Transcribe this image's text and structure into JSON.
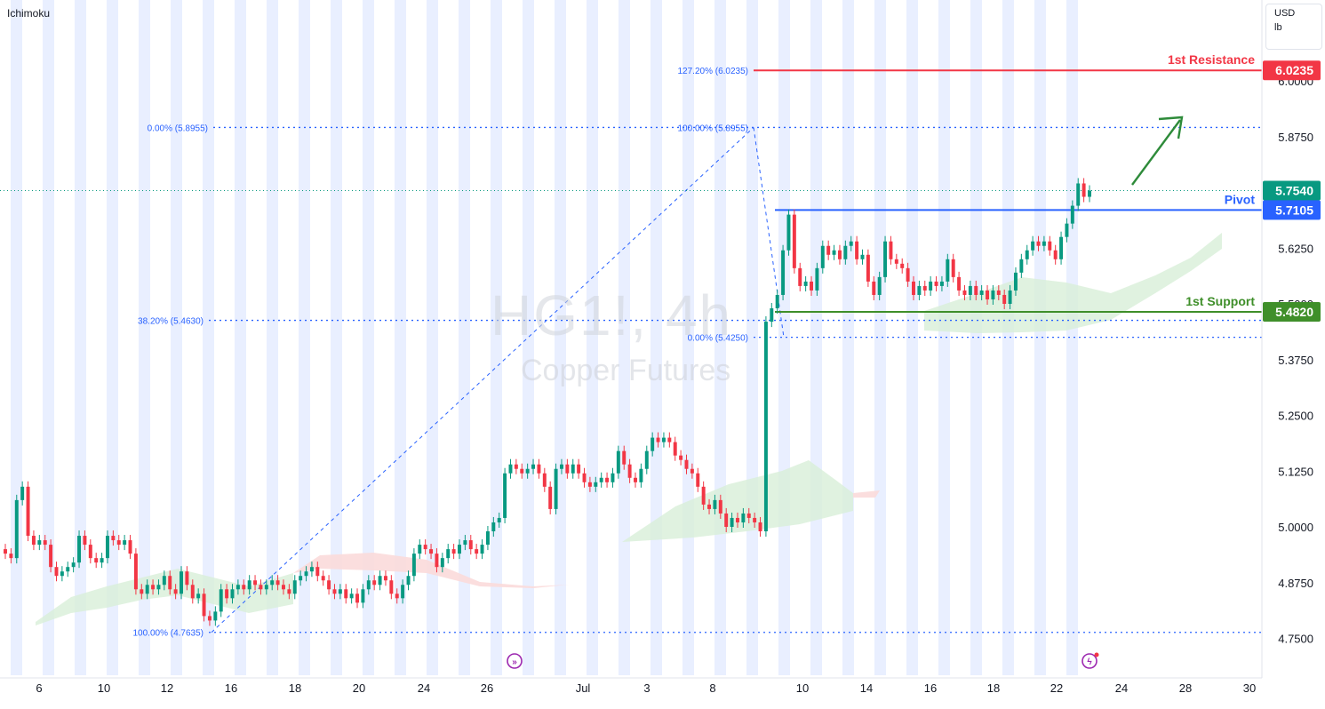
{
  "indicator_label": "Ichimoku",
  "currency_label": "USD",
  "unit_label": "lb",
  "watermark": {
    "symbol": "HG1!, 4h",
    "name": "Copper Futures"
  },
  "colors": {
    "up": "#089981",
    "down": "#f23645",
    "session_band": "#e9efff",
    "fib": "#2962ff",
    "resistance": "#f23645",
    "pivot": "#2962ff",
    "support": "#3f8f2a",
    "arrow": "#2e8b3a",
    "cloud_green": "#d8efd8",
    "cloud_red": "#fbdada"
  },
  "chart_data": {
    "type": "candlestick",
    "symbol": "HG1!",
    "interval": "4h",
    "ylim": [
      4.7,
      6.07
    ],
    "y_ticks": [
      "6.0000",
      "5.8750",
      "5.6250",
      "5.5000",
      "5.3750",
      "5.2500",
      "5.1250",
      "5.0000",
      "4.8750",
      "4.7500"
    ],
    "x_ticks": [
      "6",
      "10",
      "12",
      "16",
      "18",
      "20",
      "24",
      "26",
      "Jul",
      "3",
      "8",
      "10",
      "14",
      "16",
      "18",
      "22",
      "24",
      "28",
      "30"
    ],
    "price_tags": [
      {
        "value": "6.0235",
        "role": "resistance"
      },
      {
        "value": "5.7540",
        "role": "last"
      },
      {
        "value": "5.7105",
        "role": "pivot"
      },
      {
        "value": "5.4820",
        "role": "support"
      }
    ],
    "levels": [
      {
        "label": "1st Resistance",
        "value": 6.0235,
        "role": "resistance"
      },
      {
        "label": "Pivot",
        "value": 5.7105,
        "role": "pivot"
      },
      {
        "label": "1st Support",
        "value": 5.482,
        "role": "support"
      }
    ],
    "fib_retracement": [
      {
        "label": "0.00% (5.8955)",
        "value": 5.8955
      },
      {
        "label": "38.20% (5.4630)",
        "value": 5.463
      },
      {
        "label": "100.00% (4.7635)",
        "value": 4.7635
      }
    ],
    "fib_extension": [
      {
        "label": "127.20% (6.0235)",
        "value": 6.0235
      },
      {
        "label": "100.00% (5.8955)",
        "value": 5.8955
      },
      {
        "label": "0.00% (5.4250)",
        "value": 5.425
      }
    ],
    "last_price": 5.754,
    "candles": [
      {
        "o": 4.95,
        "c": 4.94
      },
      {
        "o": 4.94,
        "c": 4.93
      },
      {
        "o": 4.93,
        "c": 5.06
      },
      {
        "o": 5.06,
        "c": 5.09
      },
      {
        "o": 5.09,
        "c": 4.98
      },
      {
        "o": 4.98,
        "c": 4.96
      },
      {
        "o": 4.96,
        "c": 4.97
      },
      {
        "o": 4.97,
        "c": 4.96
      },
      {
        "o": 4.96,
        "c": 4.91
      },
      {
        "o": 4.91,
        "c": 4.89
      },
      {
        "o": 4.89,
        "c": 4.9
      },
      {
        "o": 4.9,
        "c": 4.91
      },
      {
        "o": 4.91,
        "c": 4.92
      },
      {
        "o": 4.92,
        "c": 4.98
      },
      {
        "o": 4.98,
        "c": 4.96
      },
      {
        "o": 4.96,
        "c": 4.93
      },
      {
        "o": 4.93,
        "c": 4.92
      },
      {
        "o": 4.92,
        "c": 4.93
      },
      {
        "o": 4.93,
        "c": 4.98
      },
      {
        "o": 4.98,
        "c": 4.97
      },
      {
        "o": 4.97,
        "c": 4.96
      },
      {
        "o": 4.96,
        "c": 4.97
      },
      {
        "o": 4.97,
        "c": 4.94
      },
      {
        "o": 4.94,
        "c": 4.86
      },
      {
        "o": 4.86,
        "c": 4.85
      },
      {
        "o": 4.85,
        "c": 4.87
      },
      {
        "o": 4.87,
        "c": 4.86
      },
      {
        "o": 4.86,
        "c": 4.87
      },
      {
        "o": 4.87,
        "c": 4.89
      },
      {
        "o": 4.89,
        "c": 4.86
      },
      {
        "o": 4.86,
        "c": 4.85
      },
      {
        "o": 4.85,
        "c": 4.9
      },
      {
        "o": 4.9,
        "c": 4.87
      },
      {
        "o": 4.87,
        "c": 4.84
      },
      {
        "o": 4.84,
        "c": 4.85
      },
      {
        "o": 4.85,
        "c": 4.8
      },
      {
        "o": 4.8,
        "c": 4.79
      },
      {
        "o": 4.79,
        "c": 4.81
      },
      {
        "o": 4.81,
        "c": 4.86
      },
      {
        "o": 4.86,
        "c": 4.84
      },
      {
        "o": 4.84,
        "c": 4.86
      },
      {
        "o": 4.86,
        "c": 4.87
      },
      {
        "o": 4.87,
        "c": 4.86
      },
      {
        "o": 4.86,
        "c": 4.88
      },
      {
        "o": 4.88,
        "c": 4.87
      },
      {
        "o": 4.87,
        "c": 4.86
      },
      {
        "o": 4.86,
        "c": 4.87
      },
      {
        "o": 4.87,
        "c": 4.88
      },
      {
        "o": 4.88,
        "c": 4.87
      },
      {
        "o": 4.87,
        "c": 4.86
      },
      {
        "o": 4.86,
        "c": 4.85
      },
      {
        "o": 4.85,
        "c": 4.88
      },
      {
        "o": 4.88,
        "c": 4.89
      },
      {
        "o": 4.89,
        "c": 4.9
      },
      {
        "o": 4.9,
        "c": 4.91
      },
      {
        "o": 4.91,
        "c": 4.89
      },
      {
        "o": 4.89,
        "c": 4.88
      },
      {
        "o": 4.88,
        "c": 4.86
      },
      {
        "o": 4.86,
        "c": 4.85
      },
      {
        "o": 4.85,
        "c": 4.86
      },
      {
        "o": 4.86,
        "c": 4.84
      },
      {
        "o": 4.84,
        "c": 4.85
      },
      {
        "o": 4.85,
        "c": 4.83
      },
      {
        "o": 4.83,
        "c": 4.86
      },
      {
        "o": 4.86,
        "c": 4.88
      },
      {
        "o": 4.88,
        "c": 4.87
      },
      {
        "o": 4.87,
        "c": 4.89
      },
      {
        "o": 4.89,
        "c": 4.88
      },
      {
        "o": 4.88,
        "c": 4.85
      },
      {
        "o": 4.85,
        "c": 4.84
      },
      {
        "o": 4.84,
        "c": 4.87
      },
      {
        "o": 4.87,
        "c": 4.89
      },
      {
        "o": 4.89,
        "c": 4.94
      },
      {
        "o": 4.94,
        "c": 4.96
      },
      {
        "o": 4.96,
        "c": 4.95
      },
      {
        "o": 4.95,
        "c": 4.94
      },
      {
        "o": 4.94,
        "c": 4.91
      },
      {
        "o": 4.91,
        "c": 4.93
      },
      {
        "o": 4.93,
        "c": 4.95
      },
      {
        "o": 4.95,
        "c": 4.94
      },
      {
        "o": 4.94,
        "c": 4.96
      },
      {
        "o": 4.96,
        "c": 4.97
      },
      {
        "o": 4.97,
        "c": 4.95
      },
      {
        "o": 4.95,
        "c": 4.94
      },
      {
        "o": 4.94,
        "c": 4.96
      },
      {
        "o": 4.96,
        "c": 4.99
      },
      {
        "o": 4.99,
        "c": 5.01
      },
      {
        "o": 5.01,
        "c": 5.02
      },
      {
        "o": 5.02,
        "c": 5.12
      },
      {
        "o": 5.12,
        "c": 5.14
      },
      {
        "o": 5.14,
        "c": 5.13
      },
      {
        "o": 5.13,
        "c": 5.12
      },
      {
        "o": 5.12,
        "c": 5.13
      },
      {
        "o": 5.13,
        "c": 5.14
      },
      {
        "o": 5.14,
        "c": 5.12
      },
      {
        "o": 5.12,
        "c": 5.09
      },
      {
        "o": 5.09,
        "c": 5.04
      },
      {
        "o": 5.04,
        "c": 5.13
      },
      {
        "o": 5.13,
        "c": 5.14
      },
      {
        "o": 5.14,
        "c": 5.12
      },
      {
        "o": 5.12,
        "c": 5.14
      },
      {
        "o": 5.14,
        "c": 5.12
      },
      {
        "o": 5.12,
        "c": 5.1
      },
      {
        "o": 5.1,
        "c": 5.09
      },
      {
        "o": 5.09,
        "c": 5.1
      },
      {
        "o": 5.1,
        "c": 5.11
      },
      {
        "o": 5.11,
        "c": 5.1
      },
      {
        "o": 5.1,
        "c": 5.12
      },
      {
        "o": 5.12,
        "c": 5.17
      },
      {
        "o": 5.17,
        "c": 5.14
      },
      {
        "o": 5.14,
        "c": 5.11
      },
      {
        "o": 5.11,
        "c": 5.1
      },
      {
        "o": 5.1,
        "c": 5.13
      },
      {
        "o": 5.13,
        "c": 5.17
      },
      {
        "o": 5.17,
        "c": 5.2
      },
      {
        "o": 5.2,
        "c": 5.19
      },
      {
        "o": 5.19,
        "c": 5.2
      },
      {
        "o": 5.2,
        "c": 5.19
      },
      {
        "o": 5.19,
        "c": 5.16
      },
      {
        "o": 5.16,
        "c": 5.15
      },
      {
        "o": 5.15,
        "c": 5.13
      },
      {
        "o": 5.13,
        "c": 5.12
      },
      {
        "o": 5.12,
        "c": 5.09
      },
      {
        "o": 5.09,
        "c": 5.05
      },
      {
        "o": 5.05,
        "c": 5.04
      },
      {
        "o": 5.04,
        "c": 5.06
      },
      {
        "o": 5.06,
        "c": 5.03
      },
      {
        "o": 5.03,
        "c": 5.0
      },
      {
        "o": 5.0,
        "c": 5.02
      },
      {
        "o": 5.02,
        "c": 5.01
      },
      {
        "o": 5.01,
        "c": 5.03
      },
      {
        "o": 5.03,
        "c": 5.02
      },
      {
        "o": 5.02,
        "c": 5.01
      },
      {
        "o": 5.01,
        "c": 4.99
      },
      {
        "o": 4.99,
        "c": 5.46
      },
      {
        "o": 5.46,
        "c": 5.49
      },
      {
        "o": 5.49,
        "c": 5.52
      },
      {
        "o": 5.52,
        "c": 5.62
      },
      {
        "o": 5.62,
        "c": 5.7
      },
      {
        "o": 5.7,
        "c": 5.58
      },
      {
        "o": 5.58,
        "c": 5.54
      },
      {
        "o": 5.54,
        "c": 5.55
      },
      {
        "o": 5.55,
        "c": 5.53
      },
      {
        "o": 5.53,
        "c": 5.58
      },
      {
        "o": 5.58,
        "c": 5.63
      },
      {
        "o": 5.63,
        "c": 5.61
      },
      {
        "o": 5.61,
        "c": 5.62
      },
      {
        "o": 5.62,
        "c": 5.6
      },
      {
        "o": 5.6,
        "c": 5.63
      },
      {
        "o": 5.63,
        "c": 5.64
      },
      {
        "o": 5.64,
        "c": 5.6
      },
      {
        "o": 5.6,
        "c": 5.61
      },
      {
        "o": 5.61,
        "c": 5.55
      },
      {
        "o": 5.55,
        "c": 5.52
      },
      {
        "o": 5.52,
        "c": 5.56
      },
      {
        "o": 5.56,
        "c": 5.64
      },
      {
        "o": 5.64,
        "c": 5.6
      },
      {
        "o": 5.6,
        "c": 5.59
      },
      {
        "o": 5.59,
        "c": 5.58
      },
      {
        "o": 5.58,
        "c": 5.55
      },
      {
        "o": 5.55,
        "c": 5.52
      },
      {
        "o": 5.52,
        "c": 5.54
      },
      {
        "o": 5.54,
        "c": 5.53
      },
      {
        "o": 5.53,
        "c": 5.55
      },
      {
        "o": 5.55,
        "c": 5.54
      },
      {
        "o": 5.54,
        "c": 5.55
      },
      {
        "o": 5.55,
        "c": 5.6
      },
      {
        "o": 5.6,
        "c": 5.56
      },
      {
        "o": 5.56,
        "c": 5.53
      },
      {
        "o": 5.53,
        "c": 5.52
      },
      {
        "o": 5.52,
        "c": 5.54
      },
      {
        "o": 5.54,
        "c": 5.52
      },
      {
        "o": 5.52,
        "c": 5.53
      },
      {
        "o": 5.53,
        "c": 5.51
      },
      {
        "o": 5.51,
        "c": 5.53
      },
      {
        "o": 5.53,
        "c": 5.52
      },
      {
        "o": 5.52,
        "c": 5.5
      },
      {
        "o": 5.5,
        "c": 5.53
      },
      {
        "o": 5.53,
        "c": 5.57
      },
      {
        "o": 5.57,
        "c": 5.6
      },
      {
        "o": 5.6,
        "c": 5.62
      },
      {
        "o": 5.62,
        "c": 5.64
      },
      {
        "o": 5.64,
        "c": 5.63
      },
      {
        "o": 5.63,
        "c": 5.64
      },
      {
        "o": 5.64,
        "c": 5.62
      },
      {
        "o": 5.62,
        "c": 5.6
      },
      {
        "o": 5.6,
        "c": 5.65
      },
      {
        "o": 5.65,
        "c": 5.68
      },
      {
        "o": 5.68,
        "c": 5.72
      },
      {
        "o": 5.72,
        "c": 5.77
      },
      {
        "o": 5.77,
        "c": 5.74
      },
      {
        "o": 5.74,
        "c": 5.754
      }
    ]
  }
}
